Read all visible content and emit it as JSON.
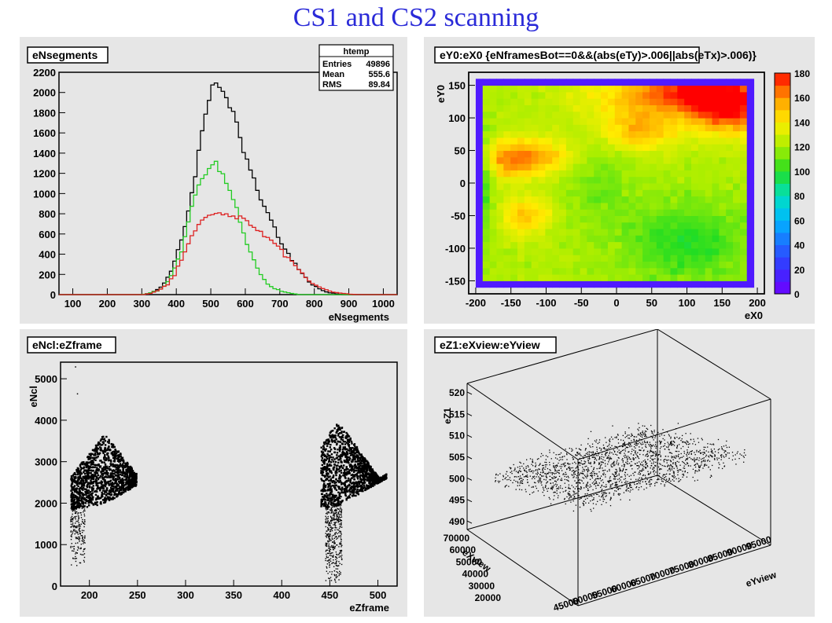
{
  "page": {
    "title": "CS1 and CS2 scanning"
  },
  "chart_data": [
    {
      "type": "histogram",
      "title": "eNsegments",
      "xlabel": "eNsegments",
      "ylabel": "",
      "xlim": [
        60,
        1040
      ],
      "ylim": [
        0,
        2200
      ],
      "xticks": [
        100,
        200,
        300,
        400,
        500,
        600,
        700,
        800,
        900,
        1000
      ],
      "yticks": [
        0,
        200,
        400,
        600,
        800,
        1000,
        1200,
        1400,
        1600,
        1800,
        2000,
        2200
      ],
      "stats": {
        "name": "htemp",
        "rows": [
          {
            "label": "Entries",
            "value": "49896"
          },
          {
            "label": "Mean",
            "value": "555.6"
          },
          {
            "label": "RMS",
            "value": "89.84"
          }
        ]
      },
      "series": [
        {
          "color": "#000000",
          "points": [
            [
              60,
              0
            ],
            [
              300,
              0
            ],
            [
              330,
              20
            ],
            [
              360,
              80
            ],
            [
              380,
              200
            ],
            [
              400,
              380
            ],
            [
              420,
              600
            ],
            [
              440,
              900
            ],
            [
              460,
              1300
            ],
            [
              480,
              1700
            ],
            [
              500,
              2000
            ],
            [
              510,
              2100
            ],
            [
              520,
              2080
            ],
            [
              535,
              2000
            ],
            [
              550,
              1900
            ],
            [
              570,
              1750
            ],
            [
              590,
              1500
            ],
            [
              610,
              1300
            ],
            [
              630,
              1100
            ],
            [
              650,
              900
            ],
            [
              670,
              780
            ],
            [
              690,
              620
            ],
            [
              710,
              480
            ],
            [
              740,
              320
            ],
            [
              770,
              180
            ],
            [
              800,
              80
            ],
            [
              830,
              30
            ],
            [
              860,
              10
            ],
            [
              880,
              0
            ],
            [
              1040,
              0
            ]
          ]
        },
        {
          "color": "#22cc22",
          "points": [
            [
              60,
              0
            ],
            [
              300,
              0
            ],
            [
              330,
              20
            ],
            [
              360,
              60
            ],
            [
              380,
              150
            ],
            [
              400,
              300
            ],
            [
              420,
              500
            ],
            [
              440,
              800
            ],
            [
              460,
              1050
            ],
            [
              480,
              1200
            ],
            [
              500,
              1280
            ],
            [
              510,
              1300
            ],
            [
              520,
              1270
            ],
            [
              540,
              1150
            ],
            [
              560,
              1000
            ],
            [
              580,
              800
            ],
            [
              600,
              560
            ],
            [
              620,
              380
            ],
            [
              640,
              220
            ],
            [
              660,
              120
            ],
            [
              680,
              70
            ],
            [
              700,
              40
            ],
            [
              720,
              20
            ],
            [
              740,
              8
            ],
            [
              760,
              0
            ],
            [
              1040,
              0
            ]
          ]
        },
        {
          "color": "#dd2222",
          "points": [
            [
              60,
              0
            ],
            [
              300,
              0
            ],
            [
              330,
              15
            ],
            [
              360,
              60
            ],
            [
              380,
              120
            ],
            [
              400,
              220
            ],
            [
              420,
              380
            ],
            [
              440,
              560
            ],
            [
              460,
              680
            ],
            [
              480,
              750
            ],
            [
              500,
              790
            ],
            [
              520,
              800
            ],
            [
              540,
              790
            ],
            [
              560,
              770
            ],
            [
              580,
              760
            ],
            [
              600,
              740
            ],
            [
              620,
              690
            ],
            [
              640,
              640
            ],
            [
              660,
              580
            ],
            [
              680,
              520
            ],
            [
              700,
              450
            ],
            [
              720,
              380
            ],
            [
              740,
              300
            ],
            [
              760,
              220
            ],
            [
              780,
              150
            ],
            [
              800,
              100
            ],
            [
              830,
              50
            ],
            [
              860,
              20
            ],
            [
              900,
              5
            ],
            [
              940,
              0
            ],
            [
              1040,
              0
            ]
          ]
        }
      ]
    },
    {
      "type": "heatmap",
      "title": "eY0:eX0 {eNframesBot==0&&(abs(eTy)>.006||abs(eTx)>.006)}",
      "xlabel": "eX0",
      "ylabel": "eY0",
      "xlim": [
        -210,
        210
      ],
      "ylim": [
        -170,
        170
      ],
      "xticks": [
        -200,
        -150,
        -100,
        -50,
        0,
        50,
        100,
        150,
        200
      ],
      "yticks": [
        -150,
        -100,
        -50,
        0,
        50,
        100,
        150
      ],
      "zlim": [
        0,
        180
      ],
      "zticks": [
        0,
        20,
        40,
        60,
        80,
        100,
        120,
        140,
        160,
        180
      ],
      "map_extent": {
        "x": [
          -200,
          195
        ],
        "y": [
          -160,
          160
        ]
      },
      "hotspots": [
        {
          "x": 160,
          "y": 120,
          "sx": 40,
          "sy": 30,
          "amp": 60
        },
        {
          "x": 90,
          "y": 140,
          "sx": 55,
          "sy": 22,
          "amp": 38
        },
        {
          "x": 30,
          "y": 80,
          "sx": 40,
          "sy": 22,
          "amp": 30
        },
        {
          "x": -120,
          "y": 40,
          "sx": 45,
          "sy": 22,
          "amp": 34
        },
        {
          "x": -130,
          "y": -50,
          "sx": 25,
          "sy": 22,
          "amp": 28
        },
        {
          "x": -155,
          "y": 35,
          "sx": 22,
          "sy": 18,
          "amp": 18
        },
        {
          "x": 20,
          "y": 130,
          "sx": 80,
          "sy": 25,
          "amp": 14
        }
      ],
      "coldspots": [
        {
          "x": 100,
          "y": -90,
          "sx": 65,
          "sy": 45,
          "amp": 22
        },
        {
          "x": -30,
          "y": 10,
          "sx": 35,
          "sy": 45,
          "amp": 12
        },
        {
          "x": -190,
          "y": 0,
          "sx": 10,
          "sy": 60,
          "amp": 20
        }
      ],
      "base_level": 122
    },
    {
      "type": "scatter",
      "title": "eNcl:eZframe",
      "xlabel": "eZframe",
      "ylabel": "eNcl",
      "xlim": [
        170,
        520
      ],
      "ylim": [
        0,
        5400
      ],
      "xticks": [
        200,
        250,
        300,
        350,
        400,
        450,
        500
      ],
      "yticks": [
        0,
        1000,
        2000,
        3000,
        4000,
        5000
      ],
      "clusters": [
        {
          "x_range": [
            180,
            248
          ],
          "y_range": [
            1700,
            3700
          ],
          "peak_x": 215,
          "density": 1300
        },
        {
          "x_range": [
            440,
            508
          ],
          "y_range": [
            1800,
            4000
          ],
          "peak_x": 458,
          "density": 1300
        }
      ],
      "tails": [
        {
          "x_range": [
            180,
            195
          ],
          "y_range": [
            500,
            2200
          ],
          "density": 280
        },
        {
          "x_range": [
            445,
            462
          ],
          "y_range": [
            0,
            2200
          ],
          "density": 480
        }
      ],
      "outliers": [
        [
          185,
          5300
        ],
        [
          187,
          4650
        ]
      ]
    },
    {
      "type": "scatter3d",
      "title": "eZ1:eXview:eYview",
      "xlabel": "eXview",
      "ylabel": "eYview",
      "zlabel": "eZ1",
      "xticks": [
        20000,
        30000,
        40000,
        50000,
        60000,
        70000
      ],
      "yticks": [
        45000,
        50000,
        55000,
        60000,
        65000,
        70000,
        75000,
        80000,
        85000,
        90000,
        95000
      ],
      "zticks": [
        490,
        495,
        500,
        505,
        510,
        515,
        520
      ],
      "xlim": [
        15000,
        72000
      ],
      "ylim": [
        45000,
        95000
      ],
      "zlim": [
        488,
        522
      ],
      "surface": {
        "base": 500,
        "slope_y": 10,
        "noise": 4,
        "density": 1800
      }
    }
  ]
}
